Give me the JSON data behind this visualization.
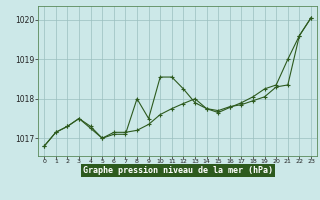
{
  "xlabel": "Graphe pression niveau de la mer (hPa)",
  "background_color": "#cce8e8",
  "label_bg_color": "#2d5a1e",
  "label_text_color": "#ffffff",
  "line_color": "#2d5a1e",
  "xlim": [
    -0.5,
    23.5
  ],
  "ylim": [
    1016.55,
    1020.35
  ],
  "yticks": [
    1017,
    1018,
    1019,
    1020
  ],
  "xticks": [
    0,
    1,
    2,
    3,
    4,
    5,
    6,
    7,
    8,
    9,
    10,
    11,
    12,
    13,
    14,
    15,
    16,
    17,
    18,
    19,
    20,
    21,
    22,
    23
  ],
  "series1_x": [
    0,
    1,
    2,
    3,
    4,
    5,
    6,
    7,
    8,
    9,
    10,
    11,
    12,
    13,
    14,
    15,
    16,
    17,
    18,
    19,
    20,
    21,
    22,
    23
  ],
  "series1_y": [
    1016.8,
    1017.15,
    1017.3,
    1017.5,
    1017.3,
    1017.0,
    1017.1,
    1017.1,
    1018.0,
    1017.5,
    1018.55,
    1018.55,
    1018.25,
    1017.9,
    1017.75,
    1017.7,
    1017.8,
    1017.85,
    1017.95,
    1018.05,
    1018.3,
    1018.35,
    1019.6,
    1020.05
  ],
  "series2_x": [
    0,
    1,
    2,
    3,
    4,
    5,
    6,
    7,
    8,
    9,
    10,
    11,
    12,
    13,
    14,
    15,
    16,
    17,
    18,
    19,
    20,
    21,
    22,
    23
  ],
  "series2_y": [
    1016.8,
    1017.15,
    1017.3,
    1017.5,
    1017.25,
    1017.0,
    1017.15,
    1017.15,
    1017.2,
    1017.35,
    1017.6,
    1017.75,
    1017.88,
    1018.0,
    1017.75,
    1017.65,
    1017.78,
    1017.9,
    1018.05,
    1018.25,
    1018.35,
    1019.0,
    1019.6,
    1020.05
  ]
}
